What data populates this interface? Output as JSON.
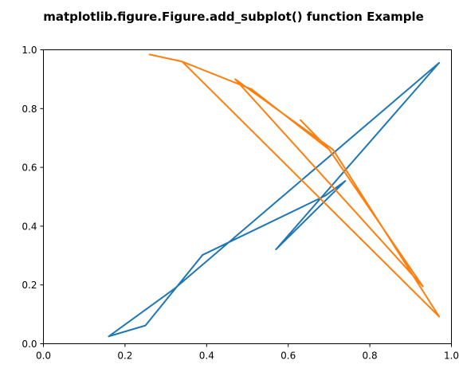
{
  "chart_data": {
    "type": "line",
    "title": "matplotlib.figure.Figure.add_subplot() function Example",
    "xlabel": "",
    "ylabel": "",
    "xlim": [
      0.0,
      1.0
    ],
    "ylim": [
      0.0,
      1.0
    ],
    "xticks": [
      "0.0",
      "0.2",
      "0.4",
      "0.6",
      "0.8",
      "1.0"
    ],
    "yticks": [
      "0.0",
      "0.2",
      "0.4",
      "0.6",
      "0.8",
      "1.0"
    ],
    "grid": false,
    "series": [
      {
        "color": "#1f77b4",
        "x": [
          0.16,
          0.25,
          0.39,
          0.69,
          0.74,
          0.57,
          0.97,
          0.32,
          0.16
        ],
        "y": [
          0.025,
          0.062,
          0.302,
          0.503,
          0.554,
          0.321,
          0.956,
          0.186,
          0.025
        ]
      },
      {
        "color": "#ff7f0e",
        "x": [
          0.63,
          0.7,
          0.93,
          0.47,
          0.71,
          0.97,
          0.34,
          0.26,
          0.34,
          0.51,
          0.7,
          0.93
        ],
        "y": [
          0.761,
          0.661,
          0.195,
          0.9,
          0.66,
          0.092,
          0.96,
          0.984,
          0.96,
          0.866,
          0.661,
          0.195
        ]
      }
    ]
  }
}
